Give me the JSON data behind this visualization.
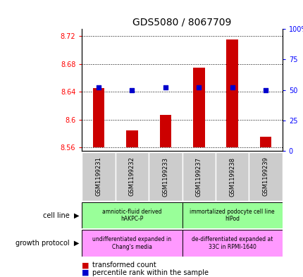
{
  "title": "GDS5080 / 8067709",
  "samples": [
    "GSM1199231",
    "GSM1199232",
    "GSM1199233",
    "GSM1199237",
    "GSM1199238",
    "GSM1199239"
  ],
  "transformed_counts": [
    8.645,
    8.585,
    8.607,
    8.675,
    8.715,
    8.575
  ],
  "percentile_ranks": [
    52,
    50,
    52,
    52,
    52,
    50
  ],
  "bar_bottom": 8.56,
  "ylim_left": [
    8.555,
    8.73
  ],
  "ylim_right": [
    0,
    100
  ],
  "yticks_left": [
    8.56,
    8.6,
    8.64,
    8.68,
    8.72
  ],
  "yticks_right": [
    0,
    25,
    50,
    75,
    100
  ],
  "bar_color": "#cc0000",
  "dot_color": "#0000cc",
  "cell_line_labels": [
    "amniotic-fluid derived\nhAKPC-P",
    "immortalized podocyte cell line\nhIPod"
  ],
  "growth_protocol_labels": [
    "undifferentiated expanded in\nChang's media",
    "de-differentiated expanded at\n33C in RPMI-1640"
  ],
  "cell_line_color": "#99ff99",
  "growth_protocol_color": "#ff99ff",
  "sample_label_bg": "#cccccc",
  "tick_fontsize": 7,
  "title_fontsize": 10,
  "bar_width": 0.35
}
